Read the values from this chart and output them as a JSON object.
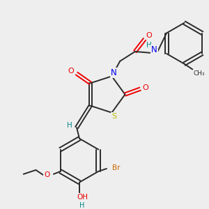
{
  "background_color": "#eeeeee",
  "colors": {
    "C": "#2a2a2a",
    "N": "#0000ee",
    "O": "#ee0000",
    "S": "#bbbb00",
    "Br": "#cc6600",
    "H": "#008888"
  },
  "lw": 1.4
}
